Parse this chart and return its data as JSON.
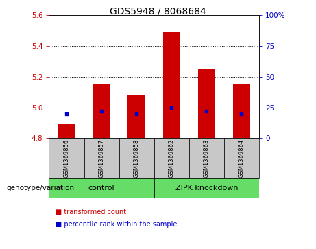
{
  "title": "GDS5948 / 8068684",
  "samples": [
    "GSM1369856",
    "GSM1369857",
    "GSM1369858",
    "GSM1369862",
    "GSM1369863",
    "GSM1369864"
  ],
  "bar_values": [
    4.89,
    5.155,
    5.08,
    5.49,
    5.25,
    5.155
  ],
  "bar_base": 4.8,
  "percentile_values": [
    20,
    22,
    20,
    25,
    22,
    20
  ],
  "bar_color": "#cc0000",
  "percentile_color": "#0000cc",
  "ylim_left": [
    4.8,
    5.6
  ],
  "ylim_right": [
    0,
    100
  ],
  "yticks_left": [
    4.8,
    5.0,
    5.2,
    5.4,
    5.6
  ],
  "yticks_right": [
    0,
    25,
    50,
    75,
    100
  ],
  "ytick_labels_right": [
    "0",
    "25",
    "50",
    "75",
    "100%"
  ],
  "grid_values": [
    5.0,
    5.2,
    5.4
  ],
  "group_row_color": "#66dd66",
  "sample_row_color": "#c8c8c8",
  "genotype_label": "genotype/variation",
  "legend_items": [
    {
      "label": "transformed count",
      "color": "#cc0000"
    },
    {
      "label": "percentile rank within the sample",
      "color": "#0000cc"
    }
  ],
  "bar_width": 0.5,
  "title_fontsize": 10,
  "tick_fontsize": 7.5,
  "left_tick_color": "#cc0000",
  "right_tick_color": "#0000cc",
  "control_label": "control",
  "zipk_label": "ZIPK knockdown"
}
